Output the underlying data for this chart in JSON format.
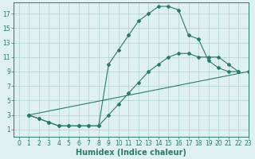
{
  "line1_x": [
    1,
    2,
    3,
    4,
    5,
    6,
    7,
    8,
    9,
    10,
    11,
    12,
    13,
    14,
    15,
    16,
    17,
    18,
    19,
    20,
    21,
    22
  ],
  "line1_y": [
    3,
    2.5,
    2,
    1.5,
    1.5,
    1.5,
    1.5,
    1.5,
    10,
    12,
    14,
    16,
    17,
    18,
    18,
    17.5,
    14,
    13.5,
    10.5,
    9.5,
    9,
    9
  ],
  "line2_x": [
    1,
    2,
    3,
    4,
    5,
    6,
    7,
    8,
    9,
    10,
    11,
    12,
    13,
    14,
    15,
    16,
    17,
    18,
    19,
    20,
    21,
    22
  ],
  "line2_y": [
    3,
    2.5,
    2,
    1.5,
    1.5,
    1.5,
    1.5,
    1.5,
    3,
    4.5,
    6,
    7.5,
    9,
    10,
    11,
    11.5,
    11.5,
    11,
    11,
    11,
    10,
    9
  ],
  "line3_x": [
    1,
    23
  ],
  "line3_y": [
    3,
    9
  ],
  "line_color": "#2a7a6a",
  "bg_color": "#dff0f0",
  "grid_color": "#b0d0d0",
  "xlabel": "Humidex (Indice chaleur)",
  "xlim": [
    -0.5,
    23
  ],
  "ylim": [
    0,
    18.5
  ],
  "xticks": [
    0,
    1,
    2,
    3,
    4,
    5,
    6,
    7,
    8,
    9,
    10,
    11,
    12,
    13,
    14,
    15,
    16,
    17,
    18,
    19,
    20,
    21,
    22,
    23
  ],
  "yticks": [
    1,
    3,
    5,
    7,
    9,
    11,
    13,
    15,
    17
  ],
  "xlabel_fontsize": 7,
  "tick_fontsize": 5.5
}
